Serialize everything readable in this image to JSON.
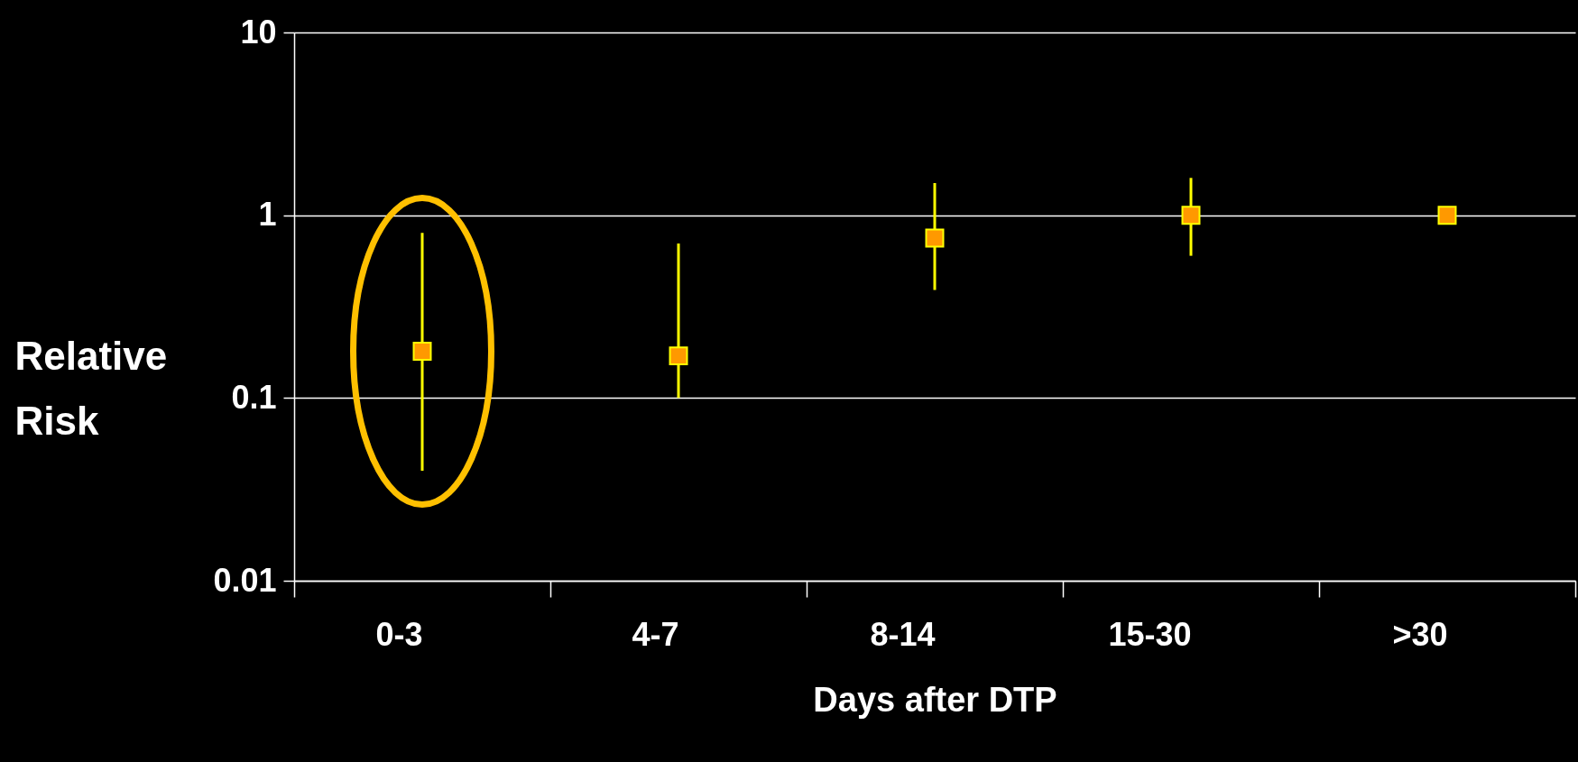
{
  "chart_data": {
    "type": "scatter",
    "xlabel": "Days after DTP",
    "ylabel": "Relative Risk",
    "categories": [
      "0-3",
      "4-7",
      "8-14",
      "15-30",
      ">30"
    ],
    "series": [
      {
        "color": "#ff9900",
        "values": [
          0.18,
          0.17,
          0.75,
          1,
          1
        ],
        "errors": [
          [
            0.04,
            0.8
          ],
          [
            0.1,
            0.7
          ],
          [
            0.39,
            1.5
          ],
          [
            0.6,
            1.6
          ],
          null
        ]
      }
    ],
    "log": "y",
    "ylim": [
      0.01,
      10
    ],
    "yticks": [
      0.01,
      0.1,
      1,
      10
    ],
    "grid": "y",
    "marker": "square"
  }
}
